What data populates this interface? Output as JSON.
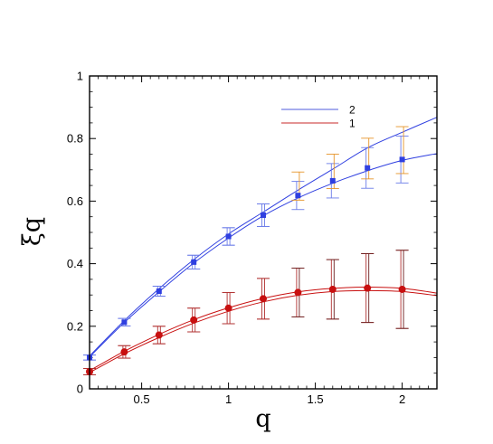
{
  "chart_data": {
    "type": "line",
    "xlabel": "q",
    "ylabel": "ξq",
    "xlim": [
      0.2,
      2.2
    ],
    "ylim": [
      0,
      1.0
    ],
    "xticks": [
      0.5,
      1,
      1.5,
      2
    ],
    "xtick_labels": [
      "0.5",
      "1",
      "1.5",
      "2"
    ],
    "yticks": [
      0,
      0.2,
      0.4,
      0.6,
      0.8,
      1.0
    ],
    "ytick_labels": [
      "0",
      "0.2",
      "0.4",
      "0.6",
      "0.8",
      "1"
    ],
    "grid": false,
    "legend_position": "top-right",
    "legend": [
      {
        "label": "2",
        "color": "#4f5bdc"
      },
      {
        "label": "1",
        "color": "#c8282a"
      }
    ],
    "series": [
      {
        "name": "2",
        "color": "#2f3fe0",
        "marker": "square",
        "x": [
          0.2,
          0.4,
          0.6,
          0.8,
          1.0,
          1.2,
          1.4,
          1.6,
          1.8,
          2.0
        ],
        "y": [
          0.1,
          0.213,
          0.312,
          0.405,
          0.487,
          0.555,
          0.618,
          0.665,
          0.706,
          0.733
        ],
        "err": [
          0.008,
          0.012,
          0.016,
          0.022,
          0.028,
          0.036,
          0.045,
          0.055,
          0.065,
          0.075
        ],
        "fit_lower": [
          [
            0.2,
            0.102
          ],
          [
            0.4,
            0.212
          ],
          [
            0.6,
            0.31
          ],
          [
            0.8,
            0.402
          ],
          [
            1.0,
            0.482
          ],
          [
            1.2,
            0.553
          ],
          [
            1.4,
            0.61
          ],
          [
            1.6,
            0.657
          ],
          [
            1.8,
            0.697
          ],
          [
            2.0,
            0.73
          ],
          [
            2.2,
            0.752
          ]
        ],
        "fit_upper": [
          [
            0.2,
            0.105
          ],
          [
            0.4,
            0.218
          ],
          [
            0.6,
            0.32
          ],
          [
            0.8,
            0.413
          ],
          [
            1.0,
            0.495
          ],
          [
            1.2,
            0.565
          ],
          [
            1.4,
            0.635
          ],
          [
            1.6,
            0.702
          ],
          [
            1.8,
            0.77
          ],
          [
            2.0,
            0.82
          ],
          [
            2.2,
            0.868
          ]
        ],
        "errbar_color": "#6a7be8",
        "errbar_color_alt": "#e6952a"
      },
      {
        "name": "1",
        "color": "#c81010",
        "marker": "circle",
        "x": [
          0.2,
          0.4,
          0.6,
          0.8,
          1.0,
          1.2,
          1.4,
          1.6,
          1.8,
          2.0
        ],
        "y": [
          0.055,
          0.118,
          0.172,
          0.22,
          0.258,
          0.288,
          0.308,
          0.318,
          0.322,
          0.318
        ],
        "err": [
          0.01,
          0.02,
          0.028,
          0.038,
          0.05,
          0.065,
          0.078,
          0.095,
          0.11,
          0.125
        ],
        "fit_lower": [
          [
            0.2,
            0.052
          ],
          [
            0.4,
            0.112
          ],
          [
            0.6,
            0.164
          ],
          [
            0.8,
            0.21
          ],
          [
            1.0,
            0.248
          ],
          [
            1.2,
            0.278
          ],
          [
            1.4,
            0.299
          ],
          [
            1.6,
            0.311
          ],
          [
            1.8,
            0.314
          ],
          [
            2.0,
            0.311
          ],
          [
            2.2,
            0.298
          ]
        ],
        "fit_upper": [
          [
            0.2,
            0.058
          ],
          [
            0.4,
            0.12
          ],
          [
            0.6,
            0.174
          ],
          [
            0.8,
            0.221
          ],
          [
            1.0,
            0.259
          ],
          [
            1.2,
            0.289
          ],
          [
            1.4,
            0.31
          ],
          [
            1.6,
            0.321
          ],
          [
            1.8,
            0.325
          ],
          [
            2.0,
            0.321
          ],
          [
            2.2,
            0.306
          ]
        ],
        "errbar_color": "#b03030",
        "errbar_color_alt": "#6b1f1f"
      }
    ]
  }
}
